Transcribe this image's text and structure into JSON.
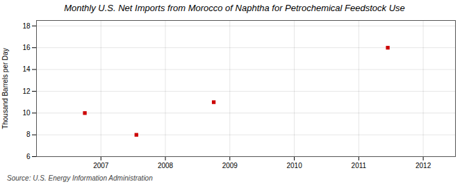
{
  "chart_data": {
    "type": "scatter",
    "title": "Monthly U.S. Net Imports from Morocco of Naphtha for Petrochemical Feedstock Use",
    "ylabel": "Thousand Barrels per Day",
    "source": "Source: U.S. Energy Information Administration",
    "x": [
      2006.75,
      2007.55,
      2008.75,
      2011.45
    ],
    "values": [
      10,
      8,
      11,
      16
    ],
    "color": "#cc0000",
    "marker": "square",
    "xlim": [
      2006.0,
      2012.5
    ],
    "ylim": [
      6,
      18.5
    ],
    "xticks": [
      2007,
      2008,
      2009,
      2010,
      2011,
      2012
    ],
    "yticks": [
      6,
      8,
      10,
      12,
      14,
      16,
      18
    ],
    "grid": true
  }
}
